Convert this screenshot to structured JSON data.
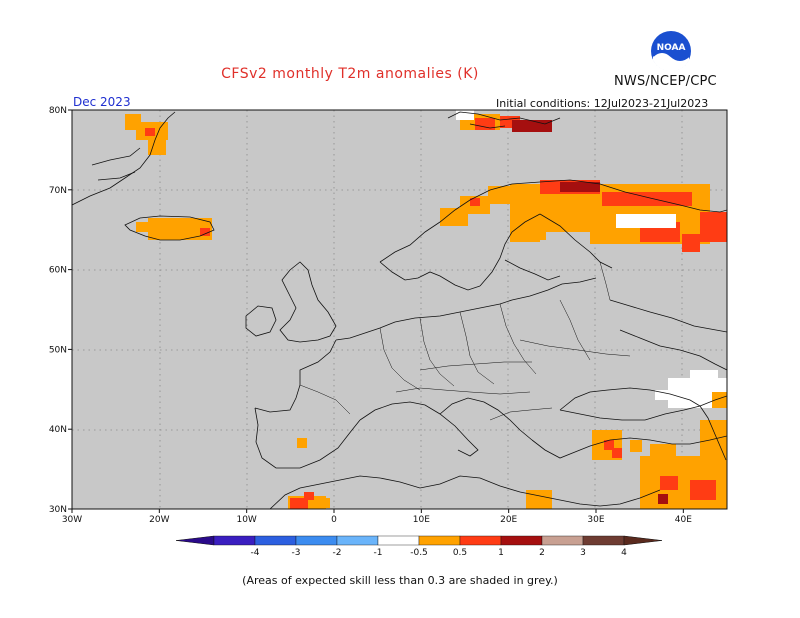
{
  "title": "CFSv2 monthly T2m anomalies (K)",
  "agency": "NWS/NCEP/CPC",
  "month_label": "Dec 2023",
  "initial_conditions": "Initial conditions: 12Jul2023-21Jul2023",
  "footnote": "(Areas of expected skill less than 0.3 are shaded in grey.)",
  "logo_text": "NOAA",
  "map": {
    "lon_range": [
      -30,
      45
    ],
    "lat_range": [
      30,
      80
    ],
    "lon_ticks": [
      {
        "value": -30,
        "label": "30W"
      },
      {
        "value": -20,
        "label": "20W"
      },
      {
        "value": -10,
        "label": "10W"
      },
      {
        "value": 0,
        "label": "0"
      },
      {
        "value": 10,
        "label": "10E"
      },
      {
        "value": 20,
        "label": "20E"
      },
      {
        "value": 30,
        "label": "30E"
      },
      {
        "value": 40,
        "label": "40E"
      }
    ],
    "lat_ticks": [
      {
        "value": 30,
        "label": "30N"
      },
      {
        "value": 40,
        "label": "40N"
      },
      {
        "value": 50,
        "label": "50N"
      },
      {
        "value": 60,
        "label": "60N"
      },
      {
        "value": 70,
        "label": "70N"
      },
      {
        "value": 80,
        "label": "80N"
      }
    ],
    "background_color": "#c8c8c8",
    "gridlines": "dotted"
  },
  "colorbar": {
    "labels": [
      "-4",
      "-3",
      "-2",
      "-1",
      "-0.5",
      "0.5",
      "1",
      "2",
      "3",
      "4"
    ],
    "colors": [
      "#3a1ec0",
      "#2c5fe0",
      "#3c8cf0",
      "#6ab4fa",
      "#ffffff",
      "#ffa200",
      "#ff3c14",
      "#a50f0f",
      "#c8a092",
      "#6e3c32"
    ],
    "low_end_color": "#2a0a8a",
    "high_end_color": "#5a2a1e"
  },
  "anomaly_legend": {
    "orange": "#ffa200",
    "red": "#ff3c14",
    "darkred": "#a50f0f",
    "white": "#ffffff"
  }
}
